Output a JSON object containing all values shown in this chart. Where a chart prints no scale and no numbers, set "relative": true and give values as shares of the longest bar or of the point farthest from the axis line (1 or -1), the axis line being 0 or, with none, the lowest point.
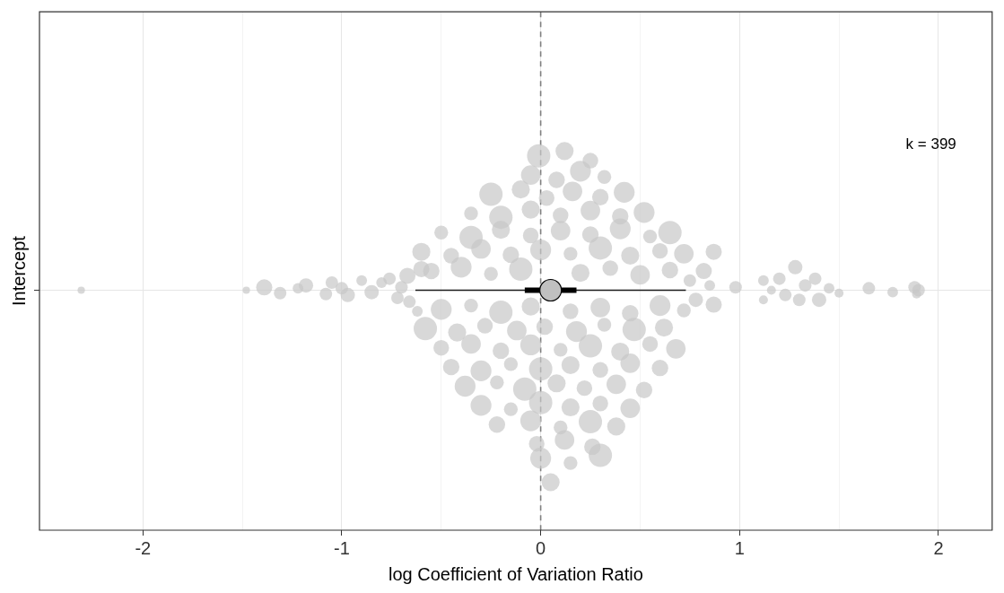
{
  "chart_data": {
    "type": "bubble",
    "xlabel": "log Coefficient of Variation Ratio",
    "ylabel": "Intercept",
    "relative": true,
    "tick_labels": "x",
    "xlim": [
      -2.52,
      2.27
    ],
    "xticks": [
      -2,
      {
        "value": -1.5,
        "label": null
      },
      -1,
      {
        "value": -0.5,
        "label": null
      },
      0,
      {
        "value": 0.5,
        "label": null
      },
      1,
      {
        "value": 1.5,
        "label": null
      },
      2
    ],
    "grid": true,
    "legend": false,
    "marker": "circle",
    "ref_lines": [
      {
        "axis": "x",
        "value": 0,
        "color": "#7f7f7f",
        "line_style": "dashed"
      }
    ],
    "annotations": [
      "k = 399"
    ],
    "series": [
      {
        "type": "bubble",
        "color": "#c8c8c8",
        "x": [
          -2.31,
          -1.48,
          -1.39,
          -1.31,
          -1.22,
          -1.18,
          -1.08,
          -1.05,
          -1.0,
          -0.97,
          -0.9,
          -0.85,
          -0.8,
          -0.76,
          -0.72,
          -0.7,
          -0.67,
          -0.66,
          -0.6,
          -0.62,
          0.75,
          0.78,
          0.82,
          0.85,
          0.87,
          0.87,
          0.98,
          1.12,
          1.12,
          1.16,
          1.2,
          1.23,
          1.28,
          1.3,
          1.33,
          1.38,
          1.4,
          1.45,
          1.5,
          1.65,
          1.77,
          1.88,
          1.9,
          1.89,
          -0.01,
          0.12,
          0.25,
          -0.05,
          0.08,
          0.2,
          0.32,
          -0.25,
          -0.1,
          0.03,
          0.16,
          0.3,
          0.42,
          -0.35,
          -0.2,
          -0.05,
          0.1,
          0.25,
          0.4,
          0.52,
          -0.5,
          -0.35,
          -0.2,
          -0.05,
          0.1,
          0.25,
          0.4,
          0.55,
          0.65,
          -0.6,
          -0.45,
          -0.3,
          -0.15,
          0.0,
          0.15,
          0.3,
          0.45,
          0.6,
          0.72,
          -0.55,
          -0.4,
          -0.25,
          -0.1,
          0.2,
          0.35,
          0.5,
          0.65,
          -0.5,
          -0.35,
          -0.2,
          -0.05,
          0.15,
          0.3,
          0.45,
          0.6,
          0.72,
          -0.58,
          -0.42,
          -0.28,
          -0.12,
          0.02,
          0.18,
          0.32,
          0.47,
          0.62,
          -0.5,
          -0.35,
          -0.2,
          -0.05,
          0.1,
          0.25,
          0.4,
          0.55,
          0.68,
          -0.45,
          -0.3,
          -0.15,
          0.0,
          0.15,
          0.3,
          0.45,
          0.6,
          -0.38,
          -0.22,
          -0.08,
          0.08,
          0.22,
          0.38,
          0.52,
          -0.3,
          -0.15,
          0.0,
          0.15,
          0.3,
          0.45,
          -0.22,
          -0.05,
          0.1,
          0.25,
          0.38,
          -0.02,
          0.12,
          0.26,
          0.0,
          0.15,
          0.3,
          0.05
        ],
        "values": [
          0,
          0,
          0.015,
          -0.015,
          0.01,
          0.025,
          -0.02,
          0.04,
          0.01,
          -0.025,
          0.05,
          -0.01,
          0.04,
          0.06,
          -0.04,
          0.015,
          0.075,
          -0.06,
          0.11,
          -0.11,
          0.05,
          -0.05,
          0.1,
          0.025,
          -0.075,
          0.2,
          0.015,
          0.05,
          -0.05,
          0,
          0.06,
          -0.025,
          0.12,
          -0.05,
          0.025,
          0.06,
          -0.05,
          0.01,
          -0.015,
          0.01,
          -0.01,
          0.015,
          0,
          -0.02,
          0.7,
          0.725,
          0.675,
          0.6,
          0.575,
          0.62,
          0.59,
          0.5,
          0.525,
          0.48,
          0.515,
          0.485,
          0.51,
          0.4,
          0.38,
          0.42,
          0.39,
          0.415,
          0.385,
          0.405,
          0.3,
          0.275,
          0.315,
          0.285,
          0.31,
          0.29,
          0.32,
          0.28,
          0.3,
          0.2,
          0.18,
          0.215,
          0.185,
          0.21,
          0.19,
          0.22,
          0.18,
          0.205,
          0.19,
          0.1,
          0.12,
          0.085,
          0.11,
          0.09,
          0.115,
          0.08,
          0.105,
          -0.1,
          -0.08,
          -0.115,
          -0.085,
          -0.11,
          -0.09,
          -0.12,
          -0.08,
          -0.105,
          -0.2,
          -0.22,
          -0.185,
          -0.21,
          -0.19,
          -0.215,
          -0.18,
          -0.205,
          -0.195,
          -0.3,
          -0.28,
          -0.315,
          -0.285,
          -0.31,
          -0.29,
          -0.32,
          -0.28,
          -0.305,
          -0.4,
          -0.42,
          -0.385,
          -0.41,
          -0.39,
          -0.415,
          -0.38,
          -0.405,
          -0.5,
          -0.48,
          -0.515,
          -0.485,
          -0.51,
          -0.49,
          -0.52,
          -0.6,
          -0.62,
          -0.585,
          -0.61,
          -0.59,
          -0.615,
          -0.7,
          -0.68,
          -0.715,
          -0.685,
          -0.71,
          -0.8,
          -0.78,
          -0.815,
          -0.875,
          -0.9,
          -0.86,
          -1
        ],
        "sizes": [
          0.1,
          0.1,
          0.48,
          0.29,
          0.21,
          0.38,
          0.29,
          0.29,
          0.29,
          0.38,
          0.21,
          0.38,
          0.21,
          0.29,
          0.29,
          0.29,
          0.48,
          0.29,
          0.48,
          0.21,
          0.29,
          0.38,
          0.48,
          0.21,
          0.48,
          0.48,
          0.29,
          0.21,
          0.15,
          0.15,
          0.29,
          0.29,
          0.38,
          0.29,
          0.29,
          0.29,
          0.38,
          0.21,
          0.15,
          0.29,
          0.21,
          0.29,
          0.29,
          0.15,
          1,
          0.6,
          0.45,
          0.7,
          0.5,
          0.8,
          0.35,
          1,
          0.6,
          0.45,
          0.7,
          0.5,
          0.8,
          0.35,
          1,
          0.6,
          0.45,
          0.7,
          0.5,
          0.8,
          0.35,
          1,
          0.6,
          0.45,
          0.7,
          0.5,
          0.8,
          0.35,
          1,
          0.6,
          0.45,
          0.7,
          0.5,
          0.8,
          0.35,
          1,
          0.6,
          0.45,
          0.7,
          0.5,
          0.8,
          0.35,
          1,
          0.6,
          0.45,
          0.7,
          0.5,
          0.8,
          0.35,
          1,
          0.6,
          0.45,
          0.7,
          0.5,
          0.8,
          0.35,
          1,
          0.6,
          0.45,
          0.7,
          0.5,
          0.8,
          0.35,
          1,
          0.6,
          0.45,
          0.7,
          0.5,
          0.8,
          0.35,
          1,
          0.6,
          0.45,
          0.7,
          0.5,
          0.8,
          0.35,
          1,
          0.6,
          0.45,
          0.7,
          0.5,
          0.8,
          0.35,
          1,
          0.6,
          0.45,
          0.7,
          0.5,
          0.8,
          0.35,
          1,
          0.6,
          0.45,
          0.7,
          0.5,
          0.8,
          0.35,
          1,
          0.6,
          0.45,
          0.7,
          0.5,
          0.8,
          0.35,
          1,
          0.6
        ]
      },
      {
        "type": "line",
        "color": "#1a1a1a",
        "marker": "none",
        "x": [
          -0.63,
          0.73
        ],
        "values": [
          0,
          0
        ]
      },
      {
        "type": "scatter",
        "color": "#c0c0c0",
        "x": [
          0.05
        ],
        "values": [
          0
        ],
        "xerrors": [
          [
            -0.08,
            0.18
          ]
        ]
      }
    ]
  }
}
